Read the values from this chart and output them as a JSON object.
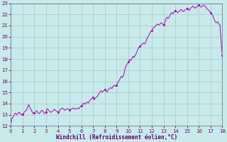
{
  "xlabel": "Windchill (Refroidissement éolien,°C)",
  "bg_color": "#c8eaea",
  "axis_label_bg": "#9999cc",
  "line_color": "#aa00aa",
  "grid_color": "#aacccc",
  "tick_color": "#660066",
  "xlim": [
    0,
    18
  ],
  "ylim": [
    12,
    23
  ],
  "xticks": [
    0,
    1,
    2,
    3,
    4,
    5,
    6,
    7,
    8,
    9,
    10,
    11,
    12,
    13,
    14,
    15,
    16,
    17,
    18
  ],
  "yticks": [
    12,
    13,
    14,
    15,
    16,
    17,
    18,
    19,
    20,
    21,
    22,
    23
  ],
  "x": [
    0.0,
    0.1,
    0.2,
    0.3,
    0.4,
    0.5,
    0.6,
    0.7,
    0.8,
    0.9,
    1.0,
    1.1,
    1.2,
    1.3,
    1.4,
    1.5,
    1.6,
    1.7,
    1.8,
    1.9,
    2.0,
    2.1,
    2.2,
    2.3,
    2.4,
    2.5,
    2.6,
    2.7,
    2.8,
    2.9,
    3.0,
    3.1,
    3.2,
    3.3,
    3.4,
    3.5,
    3.6,
    3.7,
    3.8,
    3.9,
    4.0,
    4.1,
    4.2,
    4.3,
    4.4,
    4.5,
    4.6,
    4.7,
    4.8,
    4.9,
    5.0,
    5.1,
    5.2,
    5.3,
    5.4,
    5.5,
    5.6,
    5.7,
    5.8,
    5.9,
    6.0,
    6.1,
    6.2,
    6.3,
    6.4,
    6.5,
    6.6,
    6.7,
    6.8,
    6.9,
    7.0,
    7.1,
    7.2,
    7.3,
    7.4,
    7.5,
    7.6,
    7.7,
    7.8,
    7.9,
    8.0,
    8.1,
    8.2,
    8.3,
    8.4,
    8.5,
    8.6,
    8.7,
    8.8,
    8.9,
    9.0,
    9.1,
    9.2,
    9.3,
    9.4,
    9.5,
    9.6,
    9.7,
    9.8,
    9.9,
    10.0,
    10.1,
    10.2,
    10.3,
    10.4,
    10.5,
    10.6,
    10.7,
    10.8,
    10.9,
    11.0,
    11.1,
    11.2,
    11.3,
    11.4,
    11.5,
    11.6,
    11.7,
    11.8,
    11.9,
    12.0,
    12.1,
    12.2,
    12.3,
    12.4,
    12.5,
    12.6,
    12.7,
    12.8,
    12.9,
    13.0,
    13.1,
    13.2,
    13.3,
    13.4,
    13.5,
    13.6,
    13.7,
    13.8,
    13.9,
    14.0,
    14.1,
    14.2,
    14.3,
    14.4,
    14.5,
    14.6,
    14.7,
    14.8,
    14.9,
    15.0,
    15.1,
    15.2,
    15.3,
    15.4,
    15.5,
    15.6,
    15.7,
    15.8,
    15.9,
    16.0,
    16.1,
    16.2,
    16.3,
    16.4,
    16.5,
    16.6,
    16.7,
    16.8,
    16.9,
    17.0,
    17.1,
    17.2,
    17.3,
    17.4,
    17.5,
    17.6,
    17.7,
    17.8,
    17.9,
    18.0
  ],
  "y": [
    12.5,
    12.65,
    12.8,
    13.05,
    13.15,
    13.0,
    13.1,
    13.25,
    13.1,
    13.0,
    13.05,
    13.15,
    13.3,
    13.4,
    13.55,
    13.9,
    13.75,
    13.5,
    13.3,
    13.1,
    13.15,
    13.25,
    13.35,
    13.2,
    13.1,
    13.2,
    13.35,
    13.4,
    13.2,
    13.1,
    13.25,
    13.55,
    13.45,
    13.3,
    13.2,
    13.3,
    13.35,
    13.5,
    13.4,
    13.3,
    13.25,
    13.3,
    13.45,
    13.55,
    13.6,
    13.5,
    13.4,
    13.5,
    13.55,
    13.5,
    13.4,
    13.5,
    13.55,
    13.6,
    13.55,
    13.5,
    13.55,
    13.6,
    13.55,
    13.7,
    13.8,
    13.9,
    14.05,
    13.95,
    14.05,
    14.15,
    14.05,
    14.25,
    14.35,
    14.45,
    14.55,
    14.35,
    14.5,
    14.6,
    14.7,
    14.9,
    15.05,
    15.15,
    15.05,
    15.15,
    15.25,
    15.15,
    15.05,
    15.25,
    15.35,
    15.45,
    15.35,
    15.55,
    15.65,
    15.55,
    15.65,
    15.85,
    16.05,
    16.25,
    16.45,
    16.35,
    16.55,
    17.05,
    17.35,
    17.55,
    17.75,
    17.95,
    17.85,
    18.05,
    18.25,
    18.15,
    18.35,
    18.55,
    18.85,
    19.05,
    19.15,
    19.25,
    19.35,
    19.45,
    19.35,
    19.55,
    19.85,
    20.05,
    20.25,
    20.45,
    20.55,
    20.75,
    20.85,
    20.95,
    21.05,
    21.15,
    21.05,
    21.15,
    21.25,
    21.15,
    21.05,
    21.3,
    21.55,
    21.75,
    21.65,
    21.8,
    22.05,
    22.15,
    22.05,
    22.25,
    22.35,
    22.25,
    22.15,
    22.25,
    22.35,
    22.45,
    22.35,
    22.25,
    22.35,
    22.45,
    22.55,
    22.45,
    22.35,
    22.55,
    22.65,
    22.75,
    22.65,
    22.55,
    22.65,
    22.75,
    22.85,
    22.75,
    22.65,
    22.75,
    22.85,
    22.75,
    22.65,
    22.5,
    22.4,
    22.3,
    22.15,
    22.05,
    21.85,
    21.55,
    21.35,
    21.25,
    21.35,
    21.15,
    21.05,
    19.5,
    18.3
  ]
}
